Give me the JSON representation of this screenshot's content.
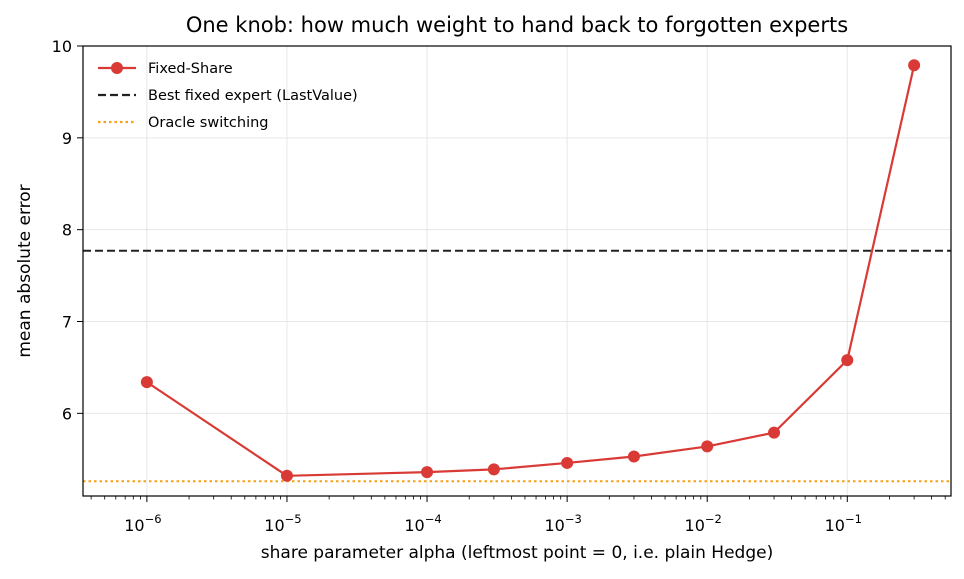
{
  "chart_data": {
    "type": "line",
    "title": "One knob: how much weight to hand back to forgotten experts",
    "xlabel": "share parameter alpha  (leftmost point = 0, i.e. plain Hedge)",
    "ylabel": "mean absolute error",
    "xscale": "log",
    "xlim": [
      3.5e-07,
      0.55
    ],
    "ylim": [
      5.1,
      10.0
    ],
    "x_ticks": [
      {
        "base": "10",
        "exp": "−6",
        "value": 1e-06
      },
      {
        "base": "10",
        "exp": "−5",
        "value": 1e-05
      },
      {
        "base": "10",
        "exp": "−4",
        "value": 0.0001
      },
      {
        "base": "10",
        "exp": "−3",
        "value": 0.001
      },
      {
        "base": "10",
        "exp": "−2",
        "value": 0.01
      },
      {
        "base": "10",
        "exp": "−1",
        "value": 0.1
      }
    ],
    "y_ticks": [
      "6",
      "7",
      "8",
      "9",
      "10"
    ],
    "grid": true,
    "legend_position": "top-left",
    "series": [
      {
        "name": "Fixed-Share",
        "style": "line-markers",
        "color": "#d93a35",
        "x": [
          1e-06,
          1e-05,
          0.0001,
          0.0003,
          0.001,
          0.003,
          0.01,
          0.03,
          0.1,
          0.3
        ],
        "y": [
          6.34,
          5.32,
          5.36,
          5.39,
          5.46,
          5.53,
          5.64,
          5.79,
          6.58,
          9.79
        ]
      },
      {
        "name": "Best fixed expert (LastValue)",
        "style": "dashed",
        "color": "#222222",
        "y": 7.77
      },
      {
        "name": "Oracle switching",
        "style": "dotted",
        "color": "#f5a015",
        "y": 5.26
      }
    ]
  }
}
